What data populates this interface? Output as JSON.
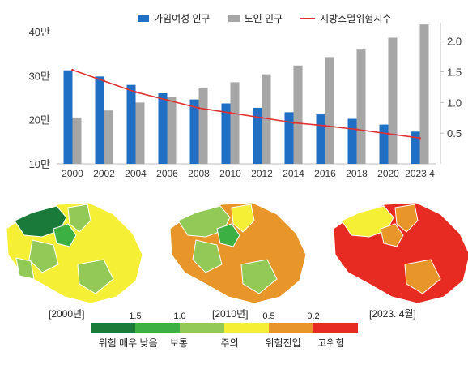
{
  "chart_data": {
    "type": "bar",
    "categories": [
      "2000",
      "2002",
      "2004",
      "2006",
      "2008",
      "2010",
      "2012",
      "2014",
      "2016",
      "2018",
      "2020",
      "2023.4"
    ],
    "series": [
      {
        "name": "가임여성 인구",
        "type": "bar",
        "axis": "left",
        "color": "#1f6fc5",
        "values": [
          31.2,
          29.8,
          27.9,
          26.0,
          24.6,
          23.7,
          22.7,
          21.7,
          21.2,
          20.2,
          18.9,
          17.3
        ]
      },
      {
        "name": "노인 인구",
        "type": "bar",
        "axis": "left",
        "color": "#a6a6a6",
        "values": [
          20.5,
          22.1,
          23.9,
          25.1,
          27.3,
          28.5,
          30.3,
          32.3,
          34.2,
          35.9,
          38.6,
          41.6
        ]
      },
      {
        "name": "지방소멸위험지수",
        "type": "line",
        "axis": "right",
        "color": "#e03030",
        "values": [
          1.53,
          1.35,
          1.17,
          1.04,
          0.91,
          0.83,
          0.75,
          0.67,
          0.62,
          0.56,
          0.49,
          0.42
        ]
      }
    ],
    "left_axis": {
      "ticks": [
        "10만",
        "20만",
        "30만",
        "40만"
      ],
      "tick_values": [
        10,
        20,
        30,
        40
      ],
      "range": [
        10,
        42
      ]
    },
    "right_axis": {
      "ticks": [
        "0.5",
        "1.0",
        "1.5",
        "2.0"
      ],
      "tick_values": [
        0.5,
        1.0,
        1.5,
        2.0
      ],
      "range": [
        0.0,
        2.3
      ]
    },
    "legend_position": "top",
    "grid": false
  },
  "maps": {
    "captions": [
      "[2000년]",
      "[2010년]",
      "[2023. 4월]"
    ]
  },
  "scale": {
    "colors": [
      "#1a7a3a",
      "#3cb043",
      "#93c956",
      "#f5f036",
      "#e8952a",
      "#e82b22"
    ],
    "thresholds": [
      "1.5",
      "1.0",
      "0.5",
      "0.2"
    ],
    "categories": [
      "위험 매우 낮음",
      "보통",
      "주의",
      "위험진입",
      "고위험"
    ]
  }
}
